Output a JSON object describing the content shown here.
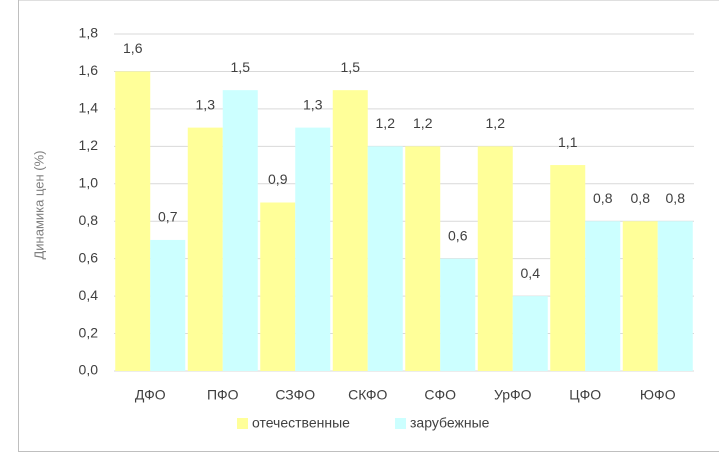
{
  "chart_data": {
    "type": "bar",
    "y_label": "Динамика цен  (%)",
    "categories": [
      "ДФО",
      "ПФО",
      "СЗФО",
      "СКФО",
      "СФО",
      "УрФО",
      "ЦФО",
      "ЮФО"
    ],
    "series": [
      {
        "name": "отечественные",
        "color": "#ffff99",
        "values": [
          1.6,
          1.3,
          0.9,
          1.5,
          1.2,
          1.2,
          1.1,
          0.8
        ],
        "value_labels": [
          "1,6",
          "1,3",
          "0,9",
          "1,5",
          "1,2",
          "1,2",
          "1,1",
          "0,8"
        ]
      },
      {
        "name": "зарубежные",
        "color": "#ccffff",
        "values": [
          0.7,
          1.5,
          1.3,
          1.2,
          0.6,
          0.4,
          0.8,
          0.8
        ],
        "value_labels": [
          "0,7",
          "1,5",
          "1,3",
          "1,2",
          "0,6",
          "0,4",
          "0,8",
          "0,8"
        ]
      }
    ],
    "ylim": [
      0,
      1.8
    ],
    "yticks": [
      {
        "value": 0,
        "label": "0,0"
      },
      {
        "value": 0.2,
        "label": "0,2"
      },
      {
        "value": 0.4,
        "label": "0,4"
      },
      {
        "value": 0.6,
        "label": "0,6"
      },
      {
        "value": 0.8,
        "label": "0,8"
      },
      {
        "value": 1.0,
        "label": "1,0"
      },
      {
        "value": 1.2,
        "label": "1,2"
      },
      {
        "value": 1.4,
        "label": "1,4"
      },
      {
        "value": 1.6,
        "label": "1,6"
      },
      {
        "value": 1.8,
        "label": "1,8"
      }
    ],
    "grid": true,
    "legend": "bottom"
  }
}
